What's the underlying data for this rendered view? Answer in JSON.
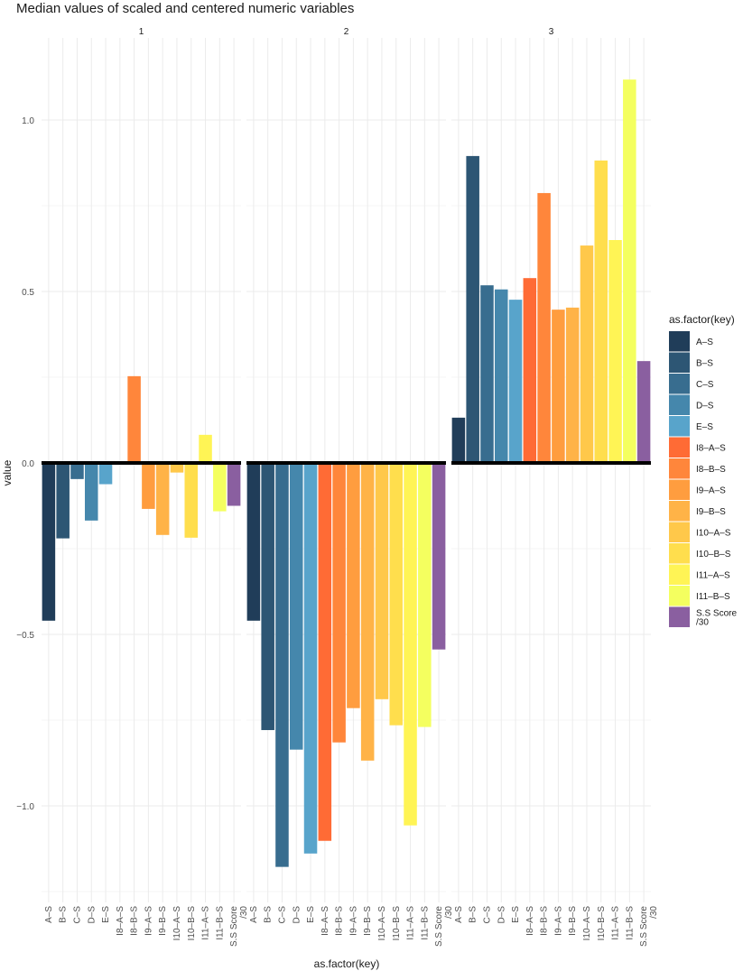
{
  "chart_data": {
    "type": "bar",
    "title": "Median values of scaled and centered numeric variables",
    "xlabel": "as.factor(key)",
    "ylabel": "value",
    "ylim": [
      -1.3,
      1.27
    ],
    "yticks": [
      -1.0,
      -0.5,
      0.0,
      0.5,
      1.0
    ],
    "ytick_labels": [
      "−1.0",
      "−0.5",
      "0.0",
      "0.5",
      "1.0"
    ],
    "grid": true,
    "legend_title": "as.factor(key)",
    "legend_position": "right",
    "categories": [
      "A–S",
      "B–S",
      "C–S",
      "D–S",
      "E–S",
      "I8–A–S",
      "I8–B–S",
      "I9–A–S",
      "I9–B–S",
      "I10–A–S",
      "I10–B–S",
      "I11–A–S",
      "I11–B–S",
      "S.S Score\n/30"
    ],
    "colors": [
      "#203d59",
      "#2d5674",
      "#386d8f",
      "#4587ac",
      "#58a4cb",
      "#ff6b35",
      "#ff863b",
      "#ff9d3f",
      "#ffb347",
      "#ffc84a",
      "#ffde4d",
      "#fff455",
      "#f4ff5f",
      "#8a5fa0"
    ],
    "facets": [
      {
        "label": "1",
        "values": [
          -0.46,
          -0.22,
          -0.047,
          -0.168,
          -0.062,
          0.0,
          0.253,
          -0.134,
          -0.21,
          -0.028,
          -0.218,
          0.082,
          -0.141,
          -0.125
        ]
      },
      {
        "label": "2",
        "values": [
          -0.46,
          -0.779,
          -1.178,
          -0.836,
          -1.139,
          -1.102,
          -0.815,
          -0.715,
          -0.868,
          -0.689,
          -0.765,
          -1.057,
          -0.77,
          -0.544
        ]
      },
      {
        "label": "3",
        "values": [
          0.132,
          0.895,
          0.518,
          0.506,
          0.476,
          0.539,
          0.787,
          0.447,
          0.453,
          0.634,
          0.882,
          0.65,
          1.118,
          0.297
        ]
      }
    ],
    "reference_line": 0
  }
}
